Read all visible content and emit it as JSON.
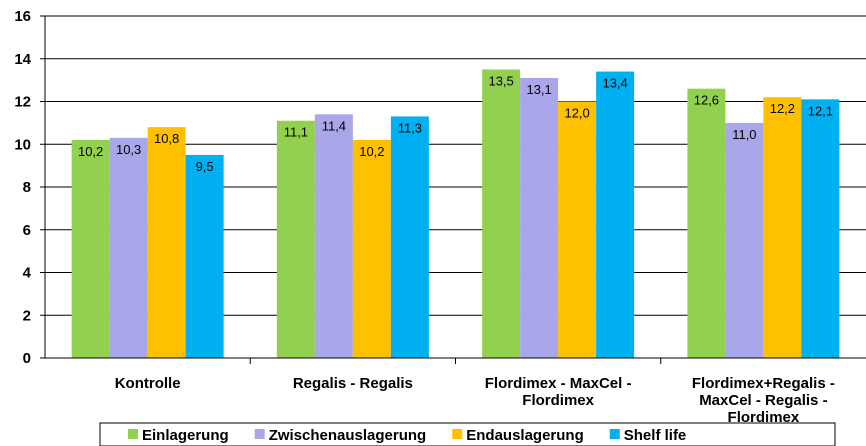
{
  "chart_data": {
    "type": "bar",
    "categories": [
      "Kontrolle",
      "Regalis - Regalis",
      "Flordimex - MaxCel - Flordimex",
      "Flordimex+Regalis - MaxCel - Regalis - Flordimex"
    ],
    "series": [
      {
        "name": "Einlagerung",
        "color": "#92d050",
        "values": [
          10.2,
          11.1,
          13.5,
          12.6
        ],
        "value_labels": [
          "10,2",
          "11,1",
          "13,5",
          "12,6"
        ]
      },
      {
        "name": "Zwischenauslagerung",
        "color": "#aaa6ea",
        "values": [
          10.3,
          11.4,
          13.1,
          11.0
        ],
        "value_labels": [
          "10,3",
          "11,4",
          "13,1",
          "11,0"
        ]
      },
      {
        "name": "Endauslagerung",
        "color": "#ffc000",
        "values": [
          10.8,
          10.2,
          12.0,
          12.2
        ],
        "value_labels": [
          "10,8",
          "10,2",
          "12,0",
          "12,2"
        ]
      },
      {
        "name": "Shelf life",
        "color": "#00b0f0",
        "values": [
          9.5,
          11.3,
          13.4,
          12.1
        ],
        "value_labels": [
          "9,5",
          "11,3",
          "13,4",
          "12,1"
        ]
      }
    ],
    "ylim": [
      0,
      16
    ],
    "yticks": [
      0,
      2,
      4,
      6,
      8,
      10,
      12,
      14,
      16
    ],
    "grid": true,
    "legend": "bottom"
  }
}
